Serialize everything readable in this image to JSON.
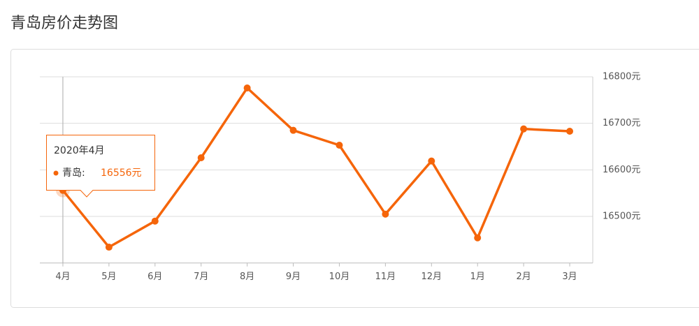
{
  "chart_data": {
    "type": "line",
    "title": "青岛房价走势图",
    "categories": [
      "4月",
      "5月",
      "6月",
      "7月",
      "8月",
      "9月",
      "10月",
      "11月",
      "12月",
      "1月",
      "2月",
      "3月"
    ],
    "series": [
      {
        "name": "青岛",
        "color": "#f5650a",
        "values": [
          16556,
          16434,
          16490,
          16626,
          16776,
          16685,
          16653,
          16505,
          16619,
          16454,
          16688,
          16683
        ]
      }
    ],
    "ylim": [
      16400,
      16800
    ],
    "yticks": [
      {
        "value": 16500,
        "label": "16500元"
      },
      {
        "value": 16600,
        "label": "16600元"
      },
      {
        "value": 16700,
        "label": "16700元"
      },
      {
        "value": 16800,
        "label": "16800元"
      }
    ],
    "grid": true,
    "tooltip": {
      "header": "2020年4月",
      "label": "青岛:",
      "value": "16556元"
    }
  }
}
